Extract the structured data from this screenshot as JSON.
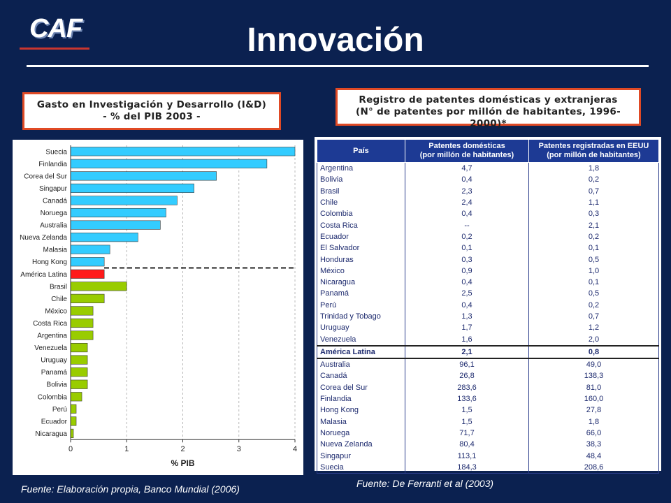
{
  "header": {
    "logo_text": "CAF",
    "title": "Innovación"
  },
  "left_box": {
    "line1": "Gasto en Investigación y Desarrollo (I&D)",
    "line2": "- % del PIB 2003 -"
  },
  "right_box": {
    "line1": "Registro de patentes domésticas y extranjeras",
    "line2": "(N° de patentes por millón de habitantes, 1996-2000)*"
  },
  "colors": {
    "bar_countries": "#33ccff",
    "bar_latam": "#ff1a1a",
    "bar_region": "#99cc00",
    "header_blue": "#1d3a94"
  },
  "chart_data": {
    "type": "bar",
    "orientation": "horizontal",
    "title": "Gasto en Investigación y Desarrollo (I&D) - % del PIB 2003 -",
    "xlabel": "% PIB",
    "ylabel": "",
    "xlim": [
      0,
      4
    ],
    "xticks": [
      0,
      1,
      2,
      3,
      4
    ],
    "xtick_labels": [
      "0",
      "1",
      "2",
      "3",
      "4"
    ],
    "grid": "vertical dashed",
    "categories": [
      "Suecia",
      "Finlandia",
      "Corea del Sur",
      "Singapur",
      "Canadá",
      "Noruega",
      "Australia",
      "Nueva Zelanda",
      "Malasia",
      "Hong Kong",
      "América Latina",
      "Brasil",
      "Chile",
      "México",
      "Costa Rica",
      "Argentina",
      "Venezuela",
      "Uruguay",
      "Panamá",
      "Bolivia",
      "Colombia",
      "Perú",
      "Ecuador",
      "Nicaragua"
    ],
    "values": [
      4.0,
      3.5,
      2.6,
      2.2,
      1.9,
      1.7,
      1.6,
      1.2,
      0.7,
      0.6,
      0.6,
      1.0,
      0.6,
      0.4,
      0.4,
      0.4,
      0.3,
      0.3,
      0.3,
      0.3,
      0.2,
      0.1,
      0.1,
      0.05
    ],
    "groups": [
      "country",
      "country",
      "country",
      "country",
      "country",
      "country",
      "country",
      "country",
      "country",
      "country",
      "latam",
      "region",
      "region",
      "region",
      "region",
      "region",
      "region",
      "region",
      "region",
      "region",
      "region",
      "region",
      "region",
      "region"
    ]
  },
  "table": {
    "headers": [
      "País",
      "Patentes domésticas (por millón de habitantes)",
      "Patentes registradas en EEUU (por millón de habitantes)"
    ],
    "header_lines": [
      [
        "País"
      ],
      [
        "Patentes domésticas",
        "(por millón de habitantes)"
      ],
      [
        "Patentes registradas en EEUU",
        "(por millón de habitantes)"
      ]
    ],
    "latam_rows": [
      [
        "Argentina",
        "4,7",
        "1,8"
      ],
      [
        "Bolivia",
        "0,4",
        "0,2"
      ],
      [
        "Brasil",
        "2,3",
        "0,7"
      ],
      [
        "Chile",
        "2,4",
        "1,1"
      ],
      [
        "Colombia",
        "0,4",
        "0,3"
      ],
      [
        "Costa Rica",
        "--",
        "2,1"
      ],
      [
        "Ecuador",
        "0,2",
        "0,2"
      ],
      [
        "El Salvador",
        "0,1",
        "0,1"
      ],
      [
        "Honduras",
        "0,3",
        "0,5"
      ],
      [
        "México",
        "0,9",
        "1,0"
      ],
      [
        "Nicaragua",
        "0,4",
        "0,1"
      ],
      [
        "Panamá",
        "2,5",
        "0,5"
      ],
      [
        "Perú",
        "0,4",
        "0,2"
      ],
      [
        "Trinidad y Tobago",
        "1,3",
        "0,7"
      ],
      [
        "Uruguay",
        "1,7",
        "1,2"
      ],
      [
        "Venezuela",
        "1,6",
        "2,0"
      ]
    ],
    "region_row": [
      "América Latina",
      "2,1",
      "0,8"
    ],
    "other_rows": [
      [
        "Australia",
        "96,1",
        "49,0"
      ],
      [
        "Canadá",
        "26,8",
        "138,3"
      ],
      [
        "Corea del Sur",
        "283,6",
        "81,0"
      ],
      [
        "Finlandia",
        "133,6",
        "160,0"
      ],
      [
        "Hong Kong",
        "1,5",
        "27,8"
      ],
      [
        "Malasia",
        "1,5",
        "1,8"
      ],
      [
        "Noruega",
        "71,7",
        "66,0"
      ],
      [
        "Nueva Zelanda",
        "80,4",
        "38,3"
      ],
      [
        "Singapur",
        "113,1",
        "48,4"
      ],
      [
        "Suecia",
        "184,3",
        "208,6"
      ]
    ]
  },
  "sources": {
    "left": "Fuente: Elaboración propia, Banco Mundial (2006)",
    "right": "Fuente: De Ferranti et al (2003)"
  }
}
